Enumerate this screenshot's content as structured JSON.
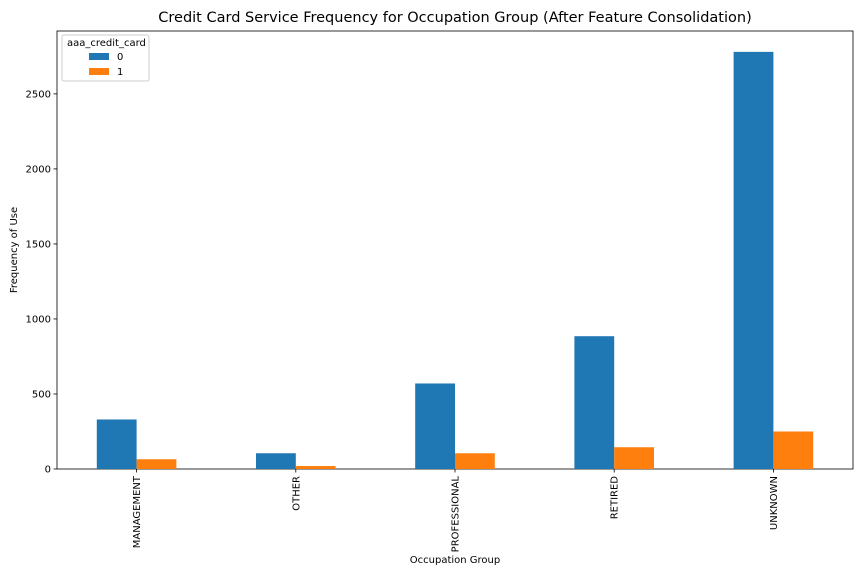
{
  "chart_data": {
    "type": "bar",
    "title": "Credit Card Service Frequency for Occupation Group (After Feature Consolidation)",
    "xlabel": "Occupation Group",
    "ylabel": "Frequency of Use",
    "categories": [
      "MANAGEMENT",
      "OTHER",
      "PROFESSIONAL",
      "RETIRED",
      "UNKNOWN"
    ],
    "series": [
      {
        "name": "0",
        "color": "#1f77b4",
        "values": [
          330,
          105,
          570,
          885,
          2780
        ]
      },
      {
        "name": "1",
        "color": "#ff7f0e",
        "values": [
          65,
          20,
          105,
          145,
          250
        ]
      }
    ],
    "yticks": [
      0,
      500,
      1000,
      1500,
      2000,
      2500
    ],
    "ylim": [
      0,
      2919
    ],
    "grid": false,
    "legend": {
      "title": "aaa_credit_card",
      "position": "top-left"
    }
  }
}
